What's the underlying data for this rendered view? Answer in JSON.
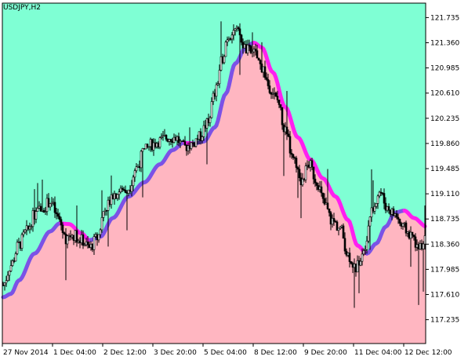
{
  "chart_data": {
    "type": "candlestick",
    "symbol_label": "USDJPY,H2",
    "colors": {
      "above_fill": "#7fffd4",
      "below_fill": "#ffb6c1",
      "ma_up": "#7b52e6",
      "ma_down": "#ff1ff0",
      "candle": "#000000",
      "background": "#ffffff"
    },
    "x_ticks": [
      {
        "label": "27 Nov 2014",
        "bar": 0
      },
      {
        "label": "1 Dec 04:00",
        "bar": 32
      },
      {
        "label": "2 Dec 12:00",
        "bar": 64
      },
      {
        "label": "3 Dec 20:00",
        "bar": 96
      },
      {
        "label": "5 Dec 04:00",
        "bar": 128
      },
      {
        "label": "8 Dec 12:00",
        "bar": 160
      },
      {
        "label": "9 Dec 20:00",
        "bar": 192
      },
      {
        "label": "11 Dec 04:00",
        "bar": 224
      },
      {
        "label": "12 Dec 12:00",
        "bar": 256
      }
    ],
    "y_ticks": [
      117.235,
      117.61,
      117.985,
      118.36,
      118.735,
      119.11,
      119.485,
      119.86,
      120.235,
      120.61,
      120.985,
      121.36,
      121.735
    ],
    "ylim": [
      116.88,
      121.95
    ],
    "bar_count": 270,
    "ma_anchors": [
      [
        0,
        117.57
      ],
      [
        5,
        117.62
      ],
      [
        10,
        117.82
      ],
      [
        20,
        118.22
      ],
      [
        30,
        118.55
      ],
      [
        36,
        118.67
      ],
      [
        42,
        118.66
      ],
      [
        50,
        118.52
      ],
      [
        55,
        118.42
      ],
      [
        62,
        118.47
      ],
      [
        70,
        118.75
      ],
      [
        80,
        119.07
      ],
      [
        90,
        119.28
      ],
      [
        100,
        119.55
      ],
      [
        108,
        119.76
      ],
      [
        115,
        119.87
      ],
      [
        122,
        119.86
      ],
      [
        128,
        119.89
      ],
      [
        135,
        120.1
      ],
      [
        142,
        120.6
      ],
      [
        148,
        121.05
      ],
      [
        155,
        121.3
      ],
      [
        160,
        121.36
      ],
      [
        165,
        121.29
      ],
      [
        172,
        120.92
      ],
      [
        180,
        120.4
      ],
      [
        188,
        119.95
      ],
      [
        196,
        119.62
      ],
      [
        204,
        119.34
      ],
      [
        212,
        119.07
      ],
      [
        220,
        118.72
      ],
      [
        226,
        118.34
      ],
      [
        232,
        118.22
      ],
      [
        238,
        118.37
      ],
      [
        244,
        118.62
      ],
      [
        250,
        118.83
      ],
      [
        256,
        118.86
      ],
      [
        262,
        118.75
      ],
      [
        270,
        118.62
      ]
    ],
    "close_anchors": [
      [
        0,
        117.75
      ],
      [
        5,
        118.05
      ],
      [
        10,
        118.35
      ],
      [
        15,
        118.55
      ],
      [
        20,
        118.8
      ],
      [
        25,
        118.9
      ],
      [
        30,
        119.0
      ],
      [
        35,
        118.75
      ],
      [
        40,
        118.45
      ],
      [
        45,
        118.5
      ],
      [
        50,
        118.42
      ],
      [
        55,
        118.3
      ],
      [
        60,
        118.45
      ],
      [
        65,
        118.9
      ],
      [
        70,
        119.1
      ],
      [
        75,
        119.15
      ],
      [
        80,
        119.2
      ],
      [
        85,
        119.5
      ],
      [
        90,
        119.75
      ],
      [
        95,
        119.85
      ],
      [
        100,
        119.9
      ],
      [
        105,
        119.95
      ],
      [
        110,
        119.95
      ],
      [
        115,
        119.8
      ],
      [
        120,
        119.85
      ],
      [
        125,
        119.95
      ],
      [
        130,
        120.15
      ],
      [
        135,
        120.6
      ],
      [
        140,
        121.15
      ],
      [
        143,
        121.45
      ],
      [
        147,
        121.55
      ],
      [
        150,
        121.5
      ],
      [
        155,
        121.25
      ],
      [
        160,
        121.2
      ],
      [
        165,
        121.0
      ],
      [
        170,
        120.7
      ],
      [
        175,
        120.5
      ],
      [
        180,
        120.05
      ],
      [
        185,
        119.6
      ],
      [
        190,
        119.3
      ],
      [
        195,
        119.55
      ],
      [
        200,
        119.3
      ],
      [
        205,
        118.95
      ],
      [
        210,
        118.7
      ],
      [
        215,
        118.6
      ],
      [
        220,
        118.2
      ],
      [
        225,
        118.0
      ],
      [
        230,
        118.3
      ],
      [
        235,
        118.85
      ],
      [
        240,
        119.15
      ],
      [
        245,
        118.9
      ],
      [
        250,
        118.8
      ],
      [
        255,
        118.6
      ],
      [
        260,
        118.5
      ],
      [
        265,
        118.3
      ],
      [
        270,
        118.45
      ]
    ]
  }
}
